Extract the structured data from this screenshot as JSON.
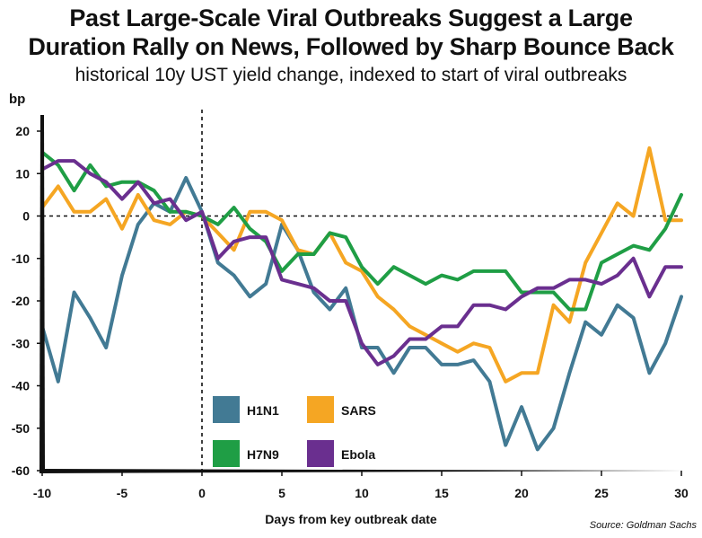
{
  "header": {
    "title_line1": "Past Large-Scale Viral Outbreaks Suggest a Large",
    "title_line2": "Duration Rally on News, Followed by Sharp Bounce Back",
    "subtitle": "historical 10y UST yield change, indexed to start of viral outbreaks"
  },
  "footer": {
    "source": "Source: Goldman Sachs"
  },
  "chart_data": {
    "type": "line",
    "title": "Past Large-Scale Viral Outbreaks Suggest a Large Duration Rally on News, Followed by Sharp Bounce Back",
    "subtitle": "historical 10y UST yield change, indexed to start of viral outbreaks",
    "xlabel": "Days from key outbreak date",
    "ylabel": "bp",
    "xlim": [
      -10,
      30
    ],
    "ylim": [
      -60,
      20
    ],
    "xticks": [
      -10,
      -5,
      0,
      5,
      10,
      15,
      20,
      25,
      30
    ],
    "yticks": [
      20,
      10,
      0,
      -10,
      -20,
      -30,
      -40,
      -50,
      -60
    ],
    "reference_lines": [
      "x=0 dashed",
      "y=0 dashed"
    ],
    "legend_position": "bottom-left inside plot",
    "x": [
      -10,
      -9,
      -8,
      -7,
      -6,
      -5,
      -4,
      -3,
      -2,
      -1,
      0,
      1,
      2,
      3,
      4,
      5,
      6,
      7,
      8,
      9,
      10,
      11,
      12,
      13,
      14,
      15,
      16,
      17,
      18,
      19,
      20,
      21,
      22,
      23,
      24,
      25,
      26,
      27,
      28,
      29,
      30
    ],
    "series": [
      {
        "name": "H1N1",
        "color": "#427a94",
        "values": [
          -26,
          -39,
          -18,
          -24,
          -31,
          -14,
          -2,
          3,
          1,
          9,
          1,
          -11,
          -14,
          -19,
          -16,
          -2,
          -8,
          -18,
          -22,
          -17,
          -31,
          -31,
          -37,
          -31,
          -31,
          -35,
          -35,
          -34,
          -39,
          -54,
          -45,
          -55,
          -50,
          -37,
          -25,
          -28,
          -21,
          -24,
          -37,
          -30,
          -19
        ]
      },
      {
        "name": "SARS",
        "color": "#f5a623",
        "values": [
          2,
          7,
          1,
          1,
          4,
          -3,
          5,
          -1,
          -2,
          1,
          0,
          -4,
          -8,
          1,
          1,
          -1,
          -8,
          -9,
          -4,
          -11,
          -13,
          -19,
          -22,
          -26,
          -28,
          -30,
          -32,
          -30,
          -31,
          -39,
          -37,
          -37,
          -21,
          -25,
          -11,
          -4,
          3,
          0,
          16,
          -1,
          -1
        ]
      },
      {
        "name": "H7N9",
        "color": "#1f9e45",
        "values": [
          15,
          12,
          6,
          12,
          7,
          8,
          8,
          6,
          1,
          1,
          0,
          -2,
          2,
          -3,
          -6,
          -13,
          -9,
          -9,
          -4,
          -5,
          -12,
          -16,
          -12,
          -14,
          -16,
          -14,
          -15,
          -13,
          -13,
          -13,
          -18,
          -18,
          -18,
          -22,
          -22,
          -11,
          -9,
          -7,
          -8,
          -3,
          5
        ]
      },
      {
        "name": "Ebola",
        "color": "#6a2f8f",
        "values": [
          11,
          13,
          13,
          10,
          8,
          4,
          8,
          3,
          4,
          -1,
          1,
          -10,
          -6,
          -5,
          -5,
          -15,
          -16,
          -17,
          -20,
          -20,
          -30,
          -35,
          -33,
          -29,
          -29,
          -26,
          -26,
          -21,
          -21,
          -22,
          -19,
          -17,
          -17,
          -15,
          -15,
          -16,
          -14,
          -10,
          -19,
          -12,
          -12
        ]
      }
    ]
  }
}
